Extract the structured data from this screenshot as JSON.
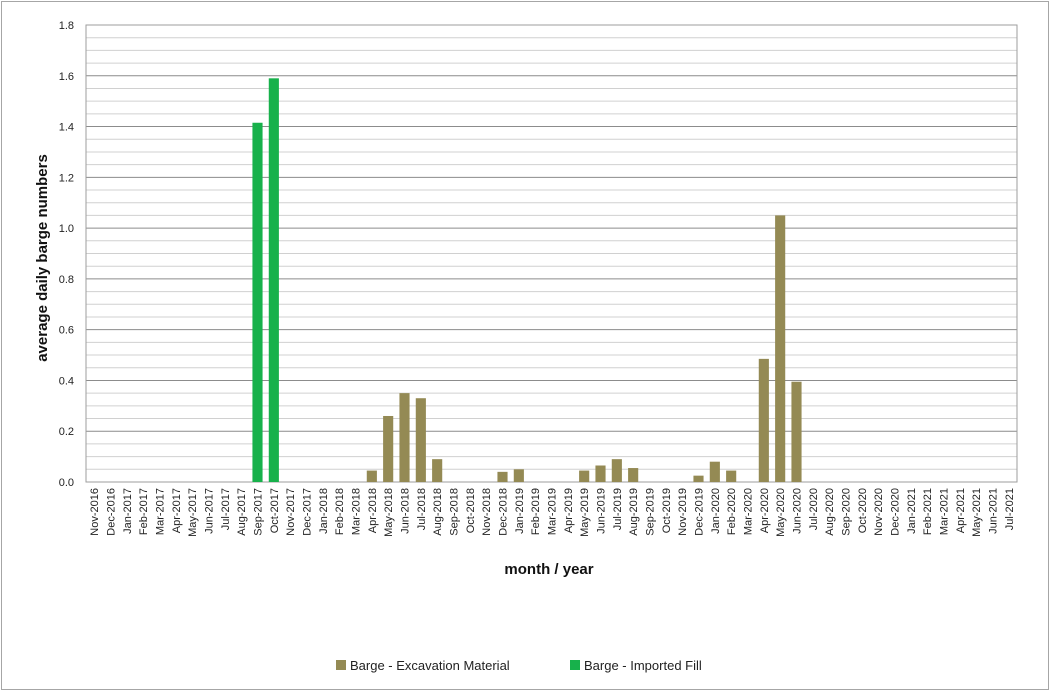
{
  "chart_data": {
    "type": "bar",
    "title": "",
    "xlabel": "month /  year",
    "ylabel": "average daily barge numbers",
    "ylim": [
      0,
      1.8
    ],
    "y_ticks": [
      "0.0",
      "0.2",
      "0.4",
      "0.6",
      "0.8",
      "1.0",
      "1.2",
      "1.4",
      "1.6",
      "1.8"
    ],
    "minor_grid_step": 0.05,
    "grid": true,
    "legend_position": "bottom",
    "categories": [
      "Nov-2016",
      "Dec-2016",
      "Jan-2017",
      "Feb-2017",
      "Mar-2017",
      "Apr-2017",
      "May-2017",
      "Jun-2017",
      "Jul-2017",
      "Aug-2017",
      "Sep-2017",
      "Oct-2017",
      "Nov-2017",
      "Dec-2017",
      "Jan-2018",
      "Feb-2018",
      "Mar-2018",
      "Apr-2018",
      "May-2018",
      "Jun-2018",
      "Jul-2018",
      "Aug-2018",
      "Sep-2018",
      "Oct-2018",
      "Nov-2018",
      "Dec-2018",
      "Jan-2019",
      "Feb-2019",
      "Mar-2019",
      "Apr-2019",
      "May-2019",
      "Jun-2019",
      "Jul-2019",
      "Aug-2019",
      "Sep-2019",
      "Oct-2019",
      "Nov-2019",
      "Dec-2019",
      "Jan-2020",
      "Feb-2020",
      "Mar-2020",
      "Apr-2020",
      "May-2020",
      "Jun-2020",
      "Jul-2020",
      "Aug-2020",
      "Sep-2020",
      "Oct-2020",
      "Nov-2020",
      "Dec-2020",
      "Jan-2021",
      "Feb-2021",
      "Mar-2021",
      "Apr-2021",
      "May-2021",
      "Jun-2021",
      "Jul-2021"
    ],
    "series": [
      {
        "name": "Barge - Excavation Material",
        "color": "#948a54",
        "values": [
          0,
          0,
          0,
          0,
          0,
          0,
          0,
          0,
          0,
          0,
          0,
          0,
          0,
          0,
          0,
          0,
          0,
          0.045,
          0.26,
          0.35,
          0.33,
          0.09,
          0,
          0,
          0,
          0.04,
          0.05,
          0,
          0,
          0,
          0.045,
          0.065,
          0.09,
          0.055,
          0,
          0,
          0,
          0.025,
          0.08,
          0.045,
          0,
          0.485,
          1.05,
          0.395,
          0,
          0,
          0,
          0,
          0,
          0,
          0,
          0,
          0,
          0,
          0,
          0,
          0
        ]
      },
      {
        "name": "Barge - Imported Fill",
        "color": "#17b14b",
        "values": [
          0,
          0,
          0,
          0,
          0,
          0,
          0,
          0,
          0,
          0,
          1.415,
          1.59,
          0,
          0,
          0,
          0,
          0,
          0,
          0,
          0,
          0,
          0,
          0,
          0,
          0,
          0,
          0,
          0,
          0,
          0,
          0,
          0,
          0,
          0,
          0,
          0,
          0,
          0,
          0,
          0,
          0,
          0,
          0,
          0,
          0,
          0,
          0,
          0,
          0,
          0,
          0,
          0,
          0,
          0,
          0,
          0,
          0
        ]
      }
    ]
  }
}
